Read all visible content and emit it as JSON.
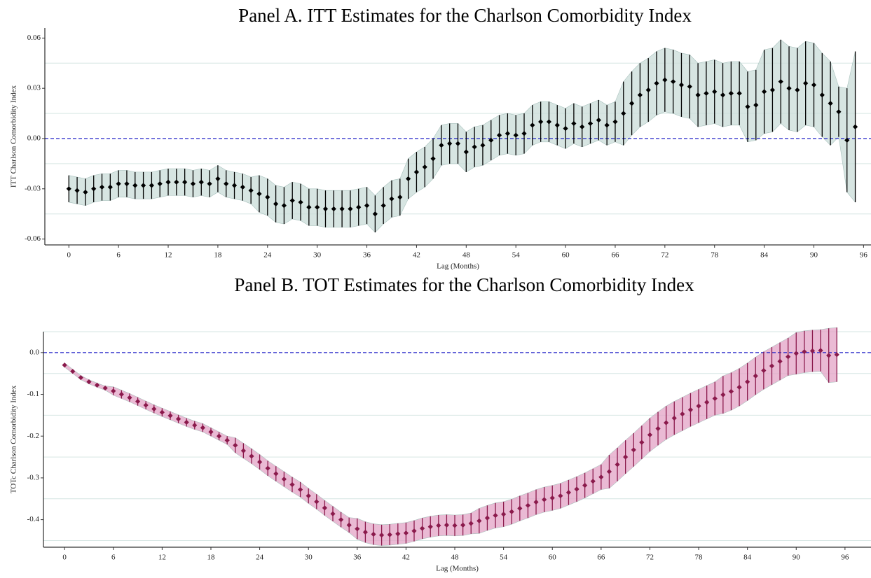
{
  "chart_data": [
    {
      "type": "errorbar",
      "title": "Panel A. ITT Estimates for the Charlson Comorbidity Index",
      "y_label": "ITT Charlson Comorbidity Index",
      "x_label": "Lag (Months)",
      "color": "#000000",
      "band_color": "#c9dcd8",
      "x": [
        0,
        1,
        2,
        3,
        4,
        5,
        6,
        7,
        8,
        9,
        10,
        11,
        12,
        13,
        14,
        15,
        16,
        17,
        18,
        19,
        20,
        21,
        22,
        23,
        24,
        25,
        26,
        27,
        28,
        29,
        30,
        31,
        32,
        33,
        34,
        35,
        36,
        37,
        38,
        39,
        40,
        41,
        42,
        43,
        44,
        45,
        46,
        47,
        48,
        49,
        50,
        51,
        52,
        53,
        54,
        55,
        56,
        57,
        58,
        59,
        60,
        61,
        62,
        63,
        64,
        65,
        66,
        67,
        68,
        69,
        70,
        71,
        72,
        73,
        74,
        75,
        76,
        77,
        78,
        79,
        80,
        81,
        82,
        83,
        84,
        85,
        86,
        87,
        88,
        89,
        90,
        91,
        92,
        93,
        94,
        95
      ],
      "values": [
        -0.03,
        -0.031,
        -0.032,
        -0.03,
        -0.029,
        -0.029,
        -0.027,
        -0.027,
        -0.028,
        -0.028,
        -0.028,
        -0.027,
        -0.026,
        -0.026,
        -0.026,
        -0.027,
        -0.026,
        -0.027,
        -0.024,
        -0.027,
        -0.028,
        -0.029,
        -0.031,
        -0.033,
        -0.035,
        -0.039,
        -0.04,
        -0.037,
        -0.038,
        -0.041,
        -0.041,
        -0.042,
        -0.042,
        -0.042,
        -0.042,
        -0.041,
        -0.04,
        -0.045,
        -0.04,
        -0.036,
        -0.035,
        -0.024,
        -0.02,
        -0.017,
        -0.012,
        -0.004,
        -0.003,
        -0.003,
        -0.008,
        -0.005,
        -0.004,
        -0.001,
        0.002,
        0.003,
        0.002,
        0.003,
        0.008,
        0.01,
        0.01,
        0.008,
        0.006,
        0.009,
        0.007,
        0.009,
        0.011,
        0.008,
        0.01,
        0.015,
        0.021,
        0.026,
        0.029,
        0.033,
        0.035,
        0.034,
        0.032,
        0.031,
        0.026,
        0.027,
        0.028,
        0.026,
        0.027,
        0.027,
        0.019,
        0.02,
        0.028,
        0.029,
        0.034,
        0.03,
        0.029,
        0.033,
        0.032,
        0.026,
        0.021,
        0.016,
        -0.001,
        0.007
      ],
      "errors": [
        0.008,
        0.008,
        0.008,
        0.008,
        0.008,
        0.008,
        0.008,
        0.008,
        0.008,
        0.008,
        0.008,
        0.008,
        0.008,
        0.008,
        0.008,
        0.008,
        0.008,
        0.008,
        0.008,
        0.008,
        0.008,
        0.008,
        0.008,
        0.011,
        0.011,
        0.011,
        0.011,
        0.011,
        0.011,
        0.011,
        0.011,
        0.011,
        0.011,
        0.011,
        0.011,
        0.011,
        0.011,
        0.011,
        0.011,
        0.011,
        0.011,
        0.012,
        0.012,
        0.012,
        0.012,
        0.012,
        0.012,
        0.012,
        0.012,
        0.012,
        0.012,
        0.012,
        0.012,
        0.012,
        0.012,
        0.012,
        0.012,
        0.012,
        0.012,
        0.012,
        0.012,
        0.012,
        0.012,
        0.012,
        0.012,
        0.012,
        0.012,
        0.019,
        0.019,
        0.019,
        0.019,
        0.019,
        0.019,
        0.019,
        0.019,
        0.019,
        0.019,
        0.019,
        0.019,
        0.019,
        0.019,
        0.019,
        0.021,
        0.021,
        0.025,
        0.025,
        0.025,
        0.025,
        0.025,
        0.025,
        0.025,
        0.025,
        0.025,
        0.015,
        0.031,
        0.045
      ],
      "xlim": [
        -2.9,
        96.9
      ],
      "ylim": [
        -0.0635,
        0.066
      ],
      "xticks": [
        0,
        6,
        12,
        18,
        24,
        30,
        36,
        42,
        48,
        54,
        60,
        66,
        72,
        78,
        84,
        90,
        96
      ],
      "yticks": [
        -0.06,
        -0.03,
        {
          "value": 0,
          "label": "0.00"
        },
        0.03,
        0.06
      ],
      "minor_yticks": [
        -0.045,
        -0.015,
        0.015,
        0.045
      ],
      "hline": 0
    },
    {
      "type": "errorbar",
      "title": "Panel B. TOT Estimates for the Charlson Comorbidity Index",
      "y_label": "TOTc Charlson Comorbidity Index",
      "x_label": "Lag (Months)",
      "color": "#8b1a4c",
      "band_color": "#e3a3c6",
      "x": [
        0,
        1,
        2,
        3,
        4,
        5,
        6,
        7,
        8,
        9,
        10,
        11,
        12,
        13,
        14,
        15,
        16,
        17,
        18,
        19,
        20,
        21,
        22,
        23,
        24,
        25,
        26,
        27,
        28,
        29,
        30,
        31,
        32,
        33,
        34,
        35,
        36,
        37,
        38,
        39,
        40,
        41,
        42,
        43,
        44,
        45,
        46,
        47,
        48,
        49,
        50,
        51,
        52,
        53,
        54,
        55,
        56,
        57,
        58,
        59,
        60,
        61,
        62,
        63,
        64,
        65,
        66,
        67,
        68,
        69,
        70,
        71,
        72,
        73,
        74,
        75,
        76,
        77,
        78,
        79,
        80,
        81,
        82,
        83,
        84,
        85,
        86,
        87,
        88,
        89,
        90,
        91,
        92,
        93,
        94,
        95
      ],
      "values": [
        -0.03,
        -0.045,
        -0.06,
        -0.07,
        -0.078,
        -0.085,
        -0.092,
        -0.1,
        -0.108,
        -0.117,
        -0.126,
        -0.135,
        -0.143,
        -0.151,
        -0.159,
        -0.167,
        -0.174,
        -0.18,
        -0.19,
        -0.2,
        -0.21,
        -0.222,
        -0.235,
        -0.248,
        -0.262,
        -0.277,
        -0.29,
        -0.303,
        -0.316,
        -0.328,
        -0.343,
        -0.357,
        -0.372,
        -0.386,
        -0.4,
        -0.413,
        -0.422,
        -0.43,
        -0.435,
        -0.437,
        -0.436,
        -0.434,
        -0.432,
        -0.427,
        -0.421,
        -0.417,
        -0.414,
        -0.413,
        -0.414,
        -0.413,
        -0.409,
        -0.403,
        -0.396,
        -0.39,
        -0.387,
        -0.381,
        -0.373,
        -0.366,
        -0.358,
        -0.352,
        -0.348,
        -0.343,
        -0.335,
        -0.327,
        -0.318,
        -0.308,
        -0.298,
        -0.285,
        -0.268,
        -0.25,
        -0.233,
        -0.215,
        -0.197,
        -0.182,
        -0.168,
        -0.157,
        -0.147,
        -0.137,
        -0.128,
        -0.119,
        -0.11,
        -0.101,
        -0.093,
        -0.083,
        -0.07,
        -0.056,
        -0.043,
        -0.032,
        -0.021,
        -0.01,
        -0.002,
        0.002,
        0.004,
        0.005,
        -0.007,
        -0.005
      ],
      "errors": [
        0.005,
        0.005,
        0.005,
        0.005,
        0.005,
        0.005,
        0.01,
        0.01,
        0.01,
        0.01,
        0.01,
        0.01,
        0.01,
        0.01,
        0.01,
        0.01,
        0.01,
        0.01,
        0.01,
        0.01,
        0.01,
        0.018,
        0.018,
        0.018,
        0.018,
        0.018,
        0.018,
        0.018,
        0.018,
        0.018,
        0.018,
        0.018,
        0.018,
        0.018,
        0.018,
        0.018,
        0.025,
        0.025,
        0.025,
        0.025,
        0.025,
        0.025,
        0.025,
        0.025,
        0.025,
        0.025,
        0.025,
        0.025,
        0.025,
        0.025,
        0.025,
        0.03,
        0.03,
        0.03,
        0.03,
        0.03,
        0.03,
        0.03,
        0.03,
        0.03,
        0.03,
        0.03,
        0.03,
        0.03,
        0.03,
        0.03,
        0.03,
        0.04,
        0.04,
        0.04,
        0.04,
        0.04,
        0.04,
        0.04,
        0.04,
        0.04,
        0.04,
        0.04,
        0.04,
        0.04,
        0.04,
        0.045,
        0.045,
        0.045,
        0.045,
        0.045,
        0.045,
        0.045,
        0.045,
        0.045,
        0.05,
        0.05,
        0.05,
        0.05,
        0.065,
        0.065
      ],
      "xlim": [
        -2.6,
        99.2
      ],
      "ylim": [
        -0.466,
        0.05
      ],
      "xticks": [
        0,
        6,
        12,
        18,
        24,
        30,
        36,
        42,
        48,
        54,
        60,
        66,
        72,
        78,
        84,
        90,
        96
      ],
      "yticks": [
        -0.4,
        -0.3,
        -0.2,
        -0.1,
        {
          "value": 0,
          "label": "0.0"
        }
      ],
      "minor_yticks": [
        -0.45,
        -0.35,
        -0.25,
        -0.15,
        -0.05,
        0.05
      ],
      "hline": 0
    }
  ]
}
